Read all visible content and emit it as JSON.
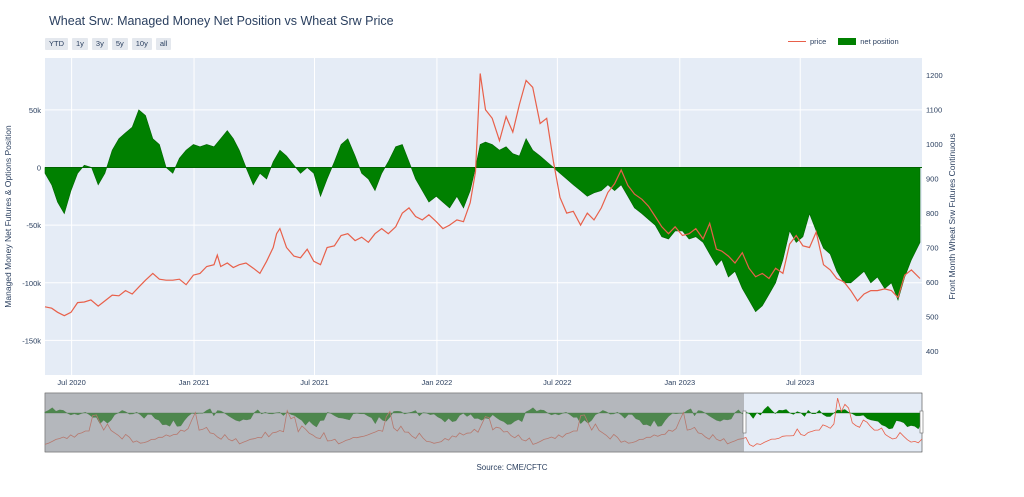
{
  "title": "Wheat Srw: Managed Money Net Position vs Wheat Srw Price",
  "range_buttons": [
    "YTD",
    "1y",
    "3y",
    "5y",
    "10y",
    "all"
  ],
  "source": "Source: CME/CFTC",
  "colors": {
    "price": "#e8604a",
    "net_position": "#008000",
    "plot_bg": "#e5ecf6",
    "slider_mask": "#8c8c8c"
  },
  "chart_data": {
    "type": "area",
    "title": "Wheat Srw: Managed Money Net Position vs Wheat Srw Price",
    "x_ticks": [
      "Jul 2020",
      "Jan 2021",
      "Jul 2021",
      "Jan 2022",
      "Jul 2022",
      "Jan 2023",
      "Jul 2023"
    ],
    "y_left": {
      "label": "Managed Money Net Futures & Options Position",
      "range": [
        -180000,
        95000
      ],
      "ticks": [
        50000,
        0,
        -50000,
        -100000,
        -150000
      ],
      "tick_labels": [
        "50k",
        "0",
        "-50k",
        "-100k",
        "-150k"
      ]
    },
    "y_right": {
      "label": "Front Month Wheat Srw Futures Continuous",
      "range": [
        330,
        1250
      ],
      "ticks": [
        1200,
        1100,
        1000,
        900,
        800,
        700,
        600,
        500,
        400
      ],
      "tick_labels": [
        "1200",
        "1100",
        "1000",
        "900",
        "800",
        "700",
        "600",
        "500",
        "400"
      ]
    },
    "legend": {
      "placement": "top-right"
    },
    "series": [
      {
        "name": "price",
        "kind": "line",
        "axis": "right",
        "points": [
          [
            "2020-05-22",
            528
          ],
          [
            "2020-06-01",
            524
          ],
          [
            "2020-06-10",
            512
          ],
          [
            "2020-06-20",
            502
          ],
          [
            "2020-06-30",
            512
          ],
          [
            "2020-07-10",
            540
          ],
          [
            "2020-07-20",
            542
          ],
          [
            "2020-07-30",
            548
          ],
          [
            "2020-08-10",
            530
          ],
          [
            "2020-08-20",
            545
          ],
          [
            "2020-08-31",
            562
          ],
          [
            "2020-09-10",
            560
          ],
          [
            "2020-09-20",
            575
          ],
          [
            "2020-09-30",
            565
          ],
          [
            "2020-10-10",
            585
          ],
          [
            "2020-10-20",
            605
          ],
          [
            "2020-10-31",
            625
          ],
          [
            "2020-11-10",
            608
          ],
          [
            "2020-11-20",
            605
          ],
          [
            "2020-11-30",
            605
          ],
          [
            "2020-12-10",
            608
          ],
          [
            "2020-12-20",
            592
          ],
          [
            "2020-12-31",
            620
          ],
          [
            "2021-01-10",
            625
          ],
          [
            "2021-01-20",
            645
          ],
          [
            "2021-01-31",
            650
          ],
          [
            "2021-02-05",
            678
          ],
          [
            "2021-02-10",
            645
          ],
          [
            "2021-02-20",
            655
          ],
          [
            "2021-03-01",
            642
          ],
          [
            "2021-03-10",
            650
          ],
          [
            "2021-03-20",
            655
          ],
          [
            "2021-03-31",
            640
          ],
          [
            "2021-04-10",
            625
          ],
          [
            "2021-04-20",
            660
          ],
          [
            "2021-04-30",
            700
          ],
          [
            "2021-05-05",
            740
          ],
          [
            "2021-05-10",
            755
          ],
          [
            "2021-05-20",
            700
          ],
          [
            "2021-05-31",
            675
          ],
          [
            "2021-06-10",
            670
          ],
          [
            "2021-06-20",
            695
          ],
          [
            "2021-06-30",
            660
          ],
          [
            "2021-07-10",
            650
          ],
          [
            "2021-07-20",
            700
          ],
          [
            "2021-07-31",
            705
          ],
          [
            "2021-08-10",
            735
          ],
          [
            "2021-08-20",
            740
          ],
          [
            "2021-08-31",
            720
          ],
          [
            "2021-09-10",
            730
          ],
          [
            "2021-09-20",
            715
          ],
          [
            "2021-09-30",
            740
          ],
          [
            "2021-10-10",
            755
          ],
          [
            "2021-10-20",
            740
          ],
          [
            "2021-10-31",
            760
          ],
          [
            "2021-11-10",
            800
          ],
          [
            "2021-11-20",
            815
          ],
          [
            "2021-11-30",
            790
          ],
          [
            "2021-12-10",
            780
          ],
          [
            "2021-12-20",
            795
          ],
          [
            "2021-12-31",
            775
          ],
          [
            "2022-01-10",
            755
          ],
          [
            "2022-01-20",
            765
          ],
          [
            "2022-01-31",
            780
          ],
          [
            "2022-02-10",
            775
          ],
          [
            "2022-02-20",
            830
          ],
          [
            "2022-02-28",
            920
          ],
          [
            "2022-03-07",
            1205
          ],
          [
            "2022-03-15",
            1100
          ],
          [
            "2022-03-25",
            1075
          ],
          [
            "2022-04-05",
            1010
          ],
          [
            "2022-04-15",
            1080
          ],
          [
            "2022-04-25",
            1035
          ],
          [
            "2022-05-05",
            1115
          ],
          [
            "2022-05-15",
            1185
          ],
          [
            "2022-05-25",
            1165
          ],
          [
            "2022-06-05",
            1060
          ],
          [
            "2022-06-15",
            1075
          ],
          [
            "2022-06-25",
            950
          ],
          [
            "2022-07-05",
            845
          ],
          [
            "2022-07-15",
            800
          ],
          [
            "2022-07-25",
            805
          ],
          [
            "2022-08-05",
            765
          ],
          [
            "2022-08-15",
            800
          ],
          [
            "2022-08-25",
            780
          ],
          [
            "2022-09-05",
            815
          ],
          [
            "2022-09-15",
            860
          ],
          [
            "2022-09-25",
            885
          ],
          [
            "2022-10-05",
            925
          ],
          [
            "2022-10-15",
            880
          ],
          [
            "2022-10-25",
            855
          ],
          [
            "2022-11-05",
            840
          ],
          [
            "2022-11-15",
            820
          ],
          [
            "2022-11-25",
            790
          ],
          [
            "2022-12-05",
            760
          ],
          [
            "2022-12-15",
            740
          ],
          [
            "2022-12-25",
            760
          ],
          [
            "2023-01-05",
            735
          ],
          [
            "2023-01-15",
            740
          ],
          [
            "2023-01-25",
            755
          ],
          [
            "2023-02-05",
            725
          ],
          [
            "2023-02-15",
            770
          ],
          [
            "2023-02-25",
            695
          ],
          [
            "2023-03-05",
            690
          ],
          [
            "2023-03-15",
            675
          ],
          [
            "2023-03-25",
            655
          ],
          [
            "2023-04-05",
            685
          ],
          [
            "2023-04-15",
            640
          ],
          [
            "2023-04-25",
            615
          ],
          [
            "2023-05-05",
            625
          ],
          [
            "2023-05-15",
            610
          ],
          [
            "2023-05-25",
            640
          ],
          [
            "2023-06-05",
            625
          ],
          [
            "2023-06-15",
            710
          ],
          [
            "2023-06-25",
            735
          ],
          [
            "2023-07-05",
            705
          ],
          [
            "2023-07-15",
            700
          ],
          [
            "2023-07-25",
            745
          ],
          [
            "2023-08-05",
            650
          ],
          [
            "2023-08-15",
            635
          ],
          [
            "2023-08-25",
            610
          ],
          [
            "2023-09-05",
            600
          ],
          [
            "2023-09-15",
            575
          ],
          [
            "2023-09-25",
            545
          ],
          [
            "2023-10-05",
            565
          ],
          [
            "2023-10-15",
            575
          ],
          [
            "2023-10-25",
            575
          ],
          [
            "2023-11-05",
            580
          ],
          [
            "2023-11-15",
            575
          ],
          [
            "2023-11-25",
            555
          ],
          [
            "2023-12-05",
            620
          ],
          [
            "2023-12-15",
            635
          ],
          [
            "2023-12-28",
            610
          ]
        ]
      },
      {
        "name": "net position",
        "kind": "area",
        "axis": "left",
        "points": [
          [
            "2020-05-22",
            -5000
          ],
          [
            "2020-06-01",
            -15000
          ],
          [
            "2020-06-10",
            -30000
          ],
          [
            "2020-06-20",
            -40000
          ],
          [
            "2020-06-30",
            -20000
          ],
          [
            "2020-07-10",
            -5000
          ],
          [
            "2020-07-20",
            2000
          ],
          [
            "2020-07-31",
            0
          ],
          [
            "2020-08-10",
            -15000
          ],
          [
            "2020-08-20",
            -5000
          ],
          [
            "2020-08-31",
            15000
          ],
          [
            "2020-09-10",
            25000
          ],
          [
            "2020-09-20",
            30000
          ],
          [
            "2020-09-30",
            35000
          ],
          [
            "2020-10-10",
            50000
          ],
          [
            "2020-10-20",
            45000
          ],
          [
            "2020-10-31",
            25000
          ],
          [
            "2020-11-10",
            20000
          ],
          [
            "2020-11-20",
            0
          ],
          [
            "2020-11-30",
            -5000
          ],
          [
            "2020-12-10",
            8000
          ],
          [
            "2020-12-20",
            15000
          ],
          [
            "2020-12-31",
            20000
          ],
          [
            "2021-01-10",
            18000
          ],
          [
            "2021-01-20",
            20000
          ],
          [
            "2021-01-31",
            18000
          ],
          [
            "2021-02-10",
            25000
          ],
          [
            "2021-02-20",
            32000
          ],
          [
            "2021-03-01",
            25000
          ],
          [
            "2021-03-10",
            15000
          ],
          [
            "2021-03-20",
            0
          ],
          [
            "2021-03-31",
            -15000
          ],
          [
            "2021-04-10",
            -5000
          ],
          [
            "2021-04-20",
            -10000
          ],
          [
            "2021-04-30",
            5000
          ],
          [
            "2021-05-10",
            15000
          ],
          [
            "2021-05-20",
            10000
          ],
          [
            "2021-05-31",
            2000
          ],
          [
            "2021-06-10",
            -5000
          ],
          [
            "2021-06-20",
            0
          ],
          [
            "2021-06-30",
            -5000
          ],
          [
            "2021-07-10",
            -25000
          ],
          [
            "2021-07-20",
            -10000
          ],
          [
            "2021-07-31",
            5000
          ],
          [
            "2021-08-10",
            20000
          ],
          [
            "2021-08-20",
            25000
          ],
          [
            "2021-08-31",
            10000
          ],
          [
            "2021-09-10",
            -5000
          ],
          [
            "2021-09-20",
            -10000
          ],
          [
            "2021-09-30",
            -20000
          ],
          [
            "2021-10-10",
            -5000
          ],
          [
            "2021-10-20",
            5000
          ],
          [
            "2021-10-31",
            18000
          ],
          [
            "2021-11-10",
            20000
          ],
          [
            "2021-11-20",
            5000
          ],
          [
            "2021-11-30",
            -10000
          ],
          [
            "2021-12-10",
            -20000
          ],
          [
            "2021-12-20",
            -30000
          ],
          [
            "2021-12-31",
            -25000
          ],
          [
            "2022-01-10",
            -30000
          ],
          [
            "2022-01-20",
            -35000
          ],
          [
            "2022-01-31",
            -25000
          ],
          [
            "2022-02-10",
            -35000
          ],
          [
            "2022-02-20",
            -20000
          ],
          [
            "2022-02-28",
            0
          ],
          [
            "2022-03-07",
            20000
          ],
          [
            "2022-03-15",
            22000
          ],
          [
            "2022-03-25",
            20000
          ],
          [
            "2022-04-05",
            15000
          ],
          [
            "2022-04-15",
            18000
          ],
          [
            "2022-04-25",
            12000
          ],
          [
            "2022-05-05",
            10000
          ],
          [
            "2022-05-15",
            25000
          ],
          [
            "2022-05-25",
            15000
          ],
          [
            "2022-06-05",
            10000
          ],
          [
            "2022-06-15",
            5000
          ],
          [
            "2022-06-25",
            0
          ],
          [
            "2022-07-05",
            -5000
          ],
          [
            "2022-07-15",
            -10000
          ],
          [
            "2022-07-25",
            -15000
          ],
          [
            "2022-08-05",
            -20000
          ],
          [
            "2022-08-15",
            -25000
          ],
          [
            "2022-08-25",
            -22000
          ],
          [
            "2022-09-05",
            -20000
          ],
          [
            "2022-09-15",
            -15000
          ],
          [
            "2022-09-25",
            -20000
          ],
          [
            "2022-10-05",
            -15000
          ],
          [
            "2022-10-15",
            -25000
          ],
          [
            "2022-10-25",
            -35000
          ],
          [
            "2022-11-05",
            -40000
          ],
          [
            "2022-11-15",
            -45000
          ],
          [
            "2022-11-25",
            -50000
          ],
          [
            "2022-12-05",
            -60000
          ],
          [
            "2022-12-15",
            -62000
          ],
          [
            "2022-12-25",
            -55000
          ],
          [
            "2023-01-05",
            -55000
          ],
          [
            "2023-01-15",
            -62000
          ],
          [
            "2023-01-25",
            -60000
          ],
          [
            "2023-02-05",
            -65000
          ],
          [
            "2023-02-15",
            -75000
          ],
          [
            "2023-02-25",
            -85000
          ],
          [
            "2023-03-05",
            -80000
          ],
          [
            "2023-03-15",
            -95000
          ],
          [
            "2023-03-25",
            -90000
          ],
          [
            "2023-04-05",
            -105000
          ],
          [
            "2023-04-15",
            -115000
          ],
          [
            "2023-04-25",
            -125000
          ],
          [
            "2023-05-05",
            -120000
          ],
          [
            "2023-05-15",
            -110000
          ],
          [
            "2023-05-25",
            -100000
          ],
          [
            "2023-06-05",
            -80000
          ],
          [
            "2023-06-15",
            -55000
          ],
          [
            "2023-06-25",
            -65000
          ],
          [
            "2023-07-05",
            -60000
          ],
          [
            "2023-07-15",
            -40000
          ],
          [
            "2023-07-25",
            -55000
          ],
          [
            "2023-08-05",
            -70000
          ],
          [
            "2023-08-15",
            -75000
          ],
          [
            "2023-08-25",
            -90000
          ],
          [
            "2023-09-05",
            -100000
          ],
          [
            "2023-09-15",
            -100000
          ],
          [
            "2023-09-25",
            -95000
          ],
          [
            "2023-10-05",
            -90000
          ],
          [
            "2023-10-15",
            -100000
          ],
          [
            "2023-10-25",
            -95000
          ],
          [
            "2023-11-05",
            -105000
          ],
          [
            "2023-11-15",
            -100000
          ],
          [
            "2023-11-25",
            -115000
          ],
          [
            "2023-12-05",
            -95000
          ],
          [
            "2023-12-15",
            -80000
          ],
          [
            "2023-12-28",
            -65000
          ]
        ]
      }
    ]
  }
}
